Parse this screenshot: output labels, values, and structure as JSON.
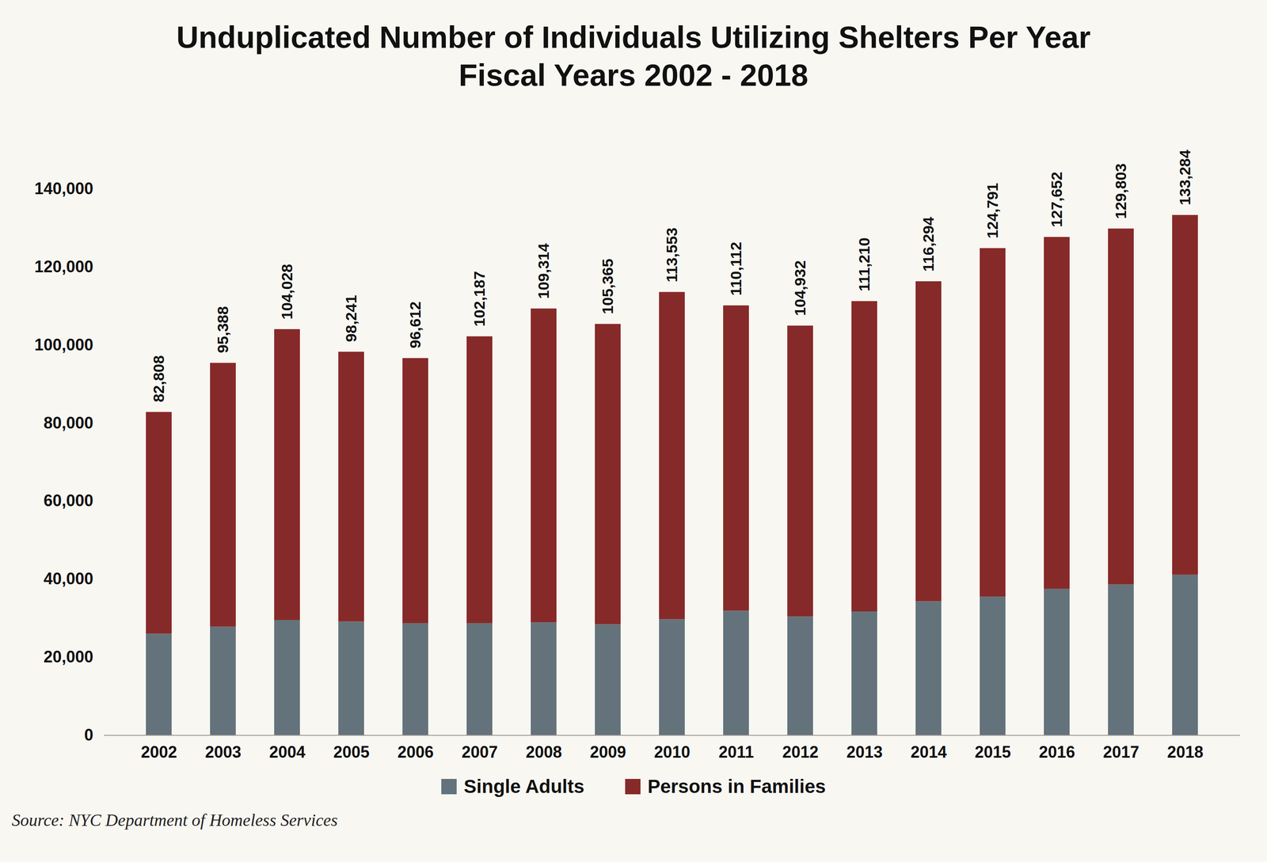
{
  "chart_data": {
    "type": "bar",
    "title": "Unduplicated Number of Individuals Utilizing Shelters Per Year\nFiscal Years 2002 - 2018",
    "caption": "Source: NYC Department of Homeless Services",
    "stacked": true,
    "legend": "bottom",
    "categories": [
      "2002",
      "2003",
      "2004",
      "2005",
      "2006",
      "2007",
      "2008",
      "2009",
      "2010",
      "2011",
      "2012",
      "2013",
      "2014",
      "2015",
      "2016",
      "2017",
      "2018"
    ],
    "series": [
      {
        "name": "Single Adults",
        "color": "#64737b",
        "values": [
          26000,
          27800,
          29500,
          29100,
          28700,
          28700,
          28900,
          28400,
          29700,
          31900,
          30400,
          31700,
          34300,
          35500,
          37500,
          38600,
          41100
        ]
      },
      {
        "name": "Persons in Families",
        "color": "#862a29",
        "values": [
          56808,
          67588,
          74528,
          69141,
          67912,
          73487,
          80414,
          76965,
          83853,
          78212,
          74532,
          79510,
          81994,
          89291,
          90152,
          91203,
          92184
        ]
      }
    ],
    "totals": [
      82808,
      95388,
      104028,
      98241,
      96612,
      102187,
      109314,
      105365,
      113553,
      110112,
      104932,
      111210,
      116294,
      124791,
      127652,
      129803,
      133284
    ],
    "total_labels": [
      "82,808",
      "95,388",
      "104,028",
      "98,241",
      "96,612",
      "102,187",
      "109,314",
      "105,365",
      "113,553",
      "110,112",
      "104,932",
      "111,210",
      "116,294",
      "124,791",
      "127,652",
      "129,803",
      "133,284"
    ],
    "ylim": [
      0,
      140000
    ],
    "yticks": [
      0,
      {
        "value": 20000,
        "label": "20,000"
      },
      {
        "value": 40000,
        "label": "40,000"
      },
      {
        "value": 60000,
        "label": "60,000"
      },
      {
        "value": 80000,
        "label": "80,000"
      },
      {
        "value": 100000,
        "label": "100,000"
      },
      {
        "value": 120000,
        "label": "120,000"
      },
      {
        "value": 140000,
        "label": "140,000"
      }
    ],
    "grid": false
  }
}
